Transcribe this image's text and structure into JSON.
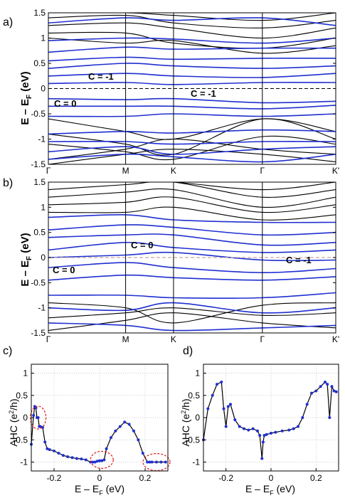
{
  "panels": {
    "a_label": "a)",
    "b_label": "b)",
    "c_label": "c)",
    "d_label": "d)"
  },
  "band_axis": {
    "ylabel_main": "E – E",
    "ylabel_sub": "F",
    "ylabel_unit": " (eV)",
    "yticks": [
      "-1.5",
      "-1",
      "-0.5",
      "0",
      "0.5",
      "1",
      "1.5"
    ],
    "kpoints": [
      "Γ",
      "M",
      "K",
      "Γ",
      "K'"
    ]
  },
  "annotations_a": [
    "C = -1",
    "C = -1",
    "C = 0"
  ],
  "annotations_b": [
    "C = 0",
    "C = 0",
    "C = -1"
  ],
  "ahc_axis": {
    "ylabel_main": "AHC (e",
    "ylabel_sup": "2",
    "ylabel_end": "/h)",
    "xlabel_main": "E – E",
    "xlabel_sub": "F",
    "xlabel_unit": " (eV)",
    "yticks": [
      "-1",
      "-0.5",
      "0",
      "0.5",
      "1"
    ],
    "xticks": [
      "-0.2",
      "0",
      "0.2"
    ]
  },
  "colors": {
    "band_blue": "#1f2fd0",
    "band_black": "#000000",
    "highlight": "#e01b1b"
  },
  "chart_data": [
    {
      "type": "line",
      "panel": "a",
      "title": "",
      "xlabel": "",
      "ylabel": "E – EF (eV)",
      "ylim": [
        -1.5,
        1.5
      ],
      "x_categories": [
        "Γ",
        "M",
        "K",
        "Γ",
        "K'"
      ],
      "kpoint_positions": [
        0,
        1.0,
        1.62,
        2.77,
        3.72
      ],
      "fermi_level": 0,
      "blue_bands": [
        {
          "x": [
            0,
            1.0,
            1.62,
            2.77,
            3.72
          ],
          "values": [
            -1.4,
            -1.3,
            -1.35,
            -1.45,
            -1.3
          ]
        },
        {
          "x": [
            0,
            1.0,
            1.62,
            2.77,
            3.72
          ],
          "values": [
            -1.25,
            -1.15,
            -1.3,
            -1.2,
            -1.15
          ]
        },
        {
          "x": [
            0,
            1.0,
            1.62,
            2.77,
            3.72
          ],
          "values": [
            -1.05,
            -1.05,
            -1.1,
            -1.05,
            -1.05
          ]
        },
        {
          "x": [
            0,
            1.0,
            1.62,
            2.77,
            3.72
          ],
          "values": [
            -0.9,
            -0.85,
            -0.88,
            -0.82,
            -0.85
          ]
        },
        {
          "x": [
            0,
            1.0,
            1.62,
            2.77,
            3.72
          ],
          "values": [
            -0.55,
            -0.55,
            -0.5,
            -0.55,
            -0.5
          ]
        },
        {
          "x": [
            0,
            1.0,
            1.62,
            2.77,
            3.72
          ],
          "values": [
            -0.35,
            -0.35,
            -0.35,
            -0.4,
            -0.33
          ]
        },
        {
          "x": [
            0,
            1.0,
            1.62,
            2.77,
            3.72
          ],
          "values": [
            -0.2,
            -0.22,
            -0.2,
            -0.28,
            -0.25
          ]
        },
        {
          "x": [
            0,
            1.0,
            1.62,
            2.77,
            3.72
          ],
          "values": [
            0.1,
            0.12,
            0.08,
            0.12,
            0.12
          ]
        },
        {
          "x": [
            0,
            1.0,
            1.62,
            2.77,
            3.72
          ],
          "values": [
            0.25,
            0.3,
            0.25,
            0.22,
            0.3
          ]
        },
        {
          "x": [
            0,
            1.0,
            1.62,
            2.77,
            3.72
          ],
          "values": [
            0.4,
            0.5,
            0.45,
            0.4,
            0.45
          ]
        },
        {
          "x": [
            0,
            1.0,
            1.62,
            2.77,
            3.72
          ],
          "values": [
            0.55,
            0.62,
            0.58,
            0.6,
            0.6
          ]
        },
        {
          "x": [
            0,
            1.0,
            1.62,
            2.77,
            3.72
          ],
          "values": [
            0.72,
            0.82,
            0.78,
            0.8,
            0.8
          ]
        },
        {
          "x": [
            0,
            1.0,
            1.62,
            2.77,
            3.72
          ],
          "values": [
            0.95,
            1.0,
            0.98,
            0.9,
            1.0
          ]
        },
        {
          "x": [
            0,
            1.0,
            1.62,
            2.77,
            3.72
          ],
          "values": [
            1.3,
            1.4,
            1.35,
            1.4,
            1.25
          ]
        }
      ],
      "black_bands": [
        {
          "x": [
            0,
            1.0,
            1.62,
            2.77,
            3.72
          ],
          "values": [
            -1.5,
            -1.3,
            -1.2,
            -1.3,
            -1.45
          ]
        },
        {
          "x": [
            0,
            1.0,
            1.62,
            2.77,
            3.72
          ],
          "values": [
            -1.4,
            -1.2,
            -1.0,
            -1.2,
            -1.3
          ]
        },
        {
          "x": [
            0,
            1.0,
            1.62,
            2.77,
            3.72
          ],
          "values": [
            -1.1,
            -1.25,
            -1.4,
            -0.95,
            -1.1
          ]
        },
        {
          "x": [
            0,
            1.0,
            1.62,
            2.77,
            3.72
          ],
          "values": [
            -0.9,
            -1.1,
            -1.3,
            -0.6,
            -1.0
          ]
        },
        {
          "x": [
            0,
            1.0,
            1.62,
            2.77,
            3.72
          ],
          "values": [
            -0.6,
            -0.85,
            -1.0,
            -0.6,
            -0.85
          ]
        },
        {
          "x": [
            0,
            1.0,
            1.62,
            2.77,
            3.72
          ],
          "values": [
            1.0,
            0.9,
            0.95,
            0.7,
            0.85
          ]
        },
        {
          "x": [
            0,
            1.0,
            1.62,
            2.77,
            3.72
          ],
          "values": [
            1.1,
            1.1,
            0.9,
            0.8,
            1.0
          ]
        },
        {
          "x": [
            0,
            1.0,
            1.62,
            2.77,
            3.72
          ],
          "values": [
            1.25,
            1.3,
            1.2,
            1.0,
            1.2
          ]
        },
        {
          "x": [
            0,
            1.0,
            1.62,
            2.77,
            3.72
          ],
          "values": [
            1.4,
            1.45,
            1.3,
            1.2,
            1.35
          ]
        },
        {
          "x": [
            0,
            1.0,
            1.62,
            2.77,
            3.72
          ],
          "values": [
            1.5,
            1.5,
            1.45,
            1.35,
            1.5
          ]
        }
      ]
    },
    {
      "type": "line",
      "panel": "b",
      "title": "",
      "xlabel": "",
      "ylabel": "E – EF (eV)",
      "ylim": [
        -1.5,
        1.5
      ],
      "x_categories": [
        "Γ",
        "M",
        "K",
        "Γ",
        "K'"
      ],
      "kpoint_positions": [
        0,
        1.0,
        1.62,
        2.77,
        3.72
      ],
      "fermi_level": 0,
      "blue_bands": [
        {
          "x": [
            0,
            1.0,
            1.62,
            2.77,
            3.72
          ],
          "values": [
            -1.3,
            -1.35,
            -1.45,
            -1.4,
            -1.35
          ]
        },
        {
          "x": [
            0,
            1.0,
            1.62,
            2.77,
            3.72
          ],
          "values": [
            -1.0,
            -1.05,
            -0.9,
            -1.1,
            -1.0
          ]
        },
        {
          "x": [
            0,
            1.0,
            1.62,
            2.77,
            3.72
          ],
          "values": [
            -0.75,
            -0.75,
            -0.8,
            -0.8,
            -0.7
          ]
        },
        {
          "x": [
            0,
            1.0,
            1.62,
            2.77,
            3.72
          ],
          "values": [
            -0.45,
            -0.35,
            -0.4,
            -0.45,
            -0.38
          ]
        },
        {
          "x": [
            0,
            1.0,
            1.62,
            2.77,
            3.72
          ],
          "values": [
            -0.2,
            -0.1,
            -0.2,
            -0.3,
            -0.22
          ]
        },
        {
          "x": [
            0,
            1.0,
            1.62,
            2.77,
            3.72
          ],
          "values": [
            0.0,
            0.05,
            0.1,
            -0.05,
            -0.05
          ]
        },
        {
          "x": [
            0,
            1.0,
            1.62,
            2.77,
            3.72
          ],
          "values": [
            0.15,
            0.3,
            0.2,
            0.1,
            0.15
          ]
        },
        {
          "x": [
            0,
            1.0,
            1.62,
            2.77,
            3.72
          ],
          "values": [
            0.4,
            0.45,
            0.45,
            0.25,
            0.3
          ]
        },
        {
          "x": [
            0,
            1.0,
            1.62,
            2.77,
            3.72
          ],
          "values": [
            0.55,
            0.65,
            0.6,
            0.45,
            0.5
          ]
        },
        {
          "x": [
            0,
            1.0,
            1.62,
            2.77,
            3.72
          ],
          "values": [
            0.8,
            0.85,
            0.75,
            0.7,
            0.7
          ]
        }
      ],
      "black_bands": [
        {
          "x": [
            0,
            1.0,
            1.62,
            2.77,
            3.72
          ],
          "values": [
            -1.45,
            -1.25,
            -1.1,
            -1.3,
            -1.4
          ]
        },
        {
          "x": [
            0,
            1.0,
            1.62,
            2.77,
            3.72
          ],
          "values": [
            -1.2,
            -1.1,
            -1.0,
            -1.15,
            -1.1
          ]
        },
        {
          "x": [
            0,
            1.0,
            1.62,
            2.77,
            3.72
          ],
          "values": [
            -0.9,
            -1.0,
            -1.3,
            -0.95,
            -0.9
          ]
        },
        {
          "x": [
            0,
            1.0,
            1.62,
            2.77,
            3.72
          ],
          "values": [
            0.9,
            0.9,
            1.0,
            0.75,
            0.85
          ]
        },
        {
          "x": [
            0,
            1.0,
            1.62,
            2.77,
            3.72
          ],
          "values": [
            1.05,
            1.1,
            1.2,
            0.9,
            1.05
          ]
        },
        {
          "x": [
            0,
            1.0,
            1.62,
            2.77,
            3.72
          ],
          "values": [
            1.2,
            1.3,
            1.35,
            1.0,
            1.2
          ]
        },
        {
          "x": [
            0,
            1.0,
            1.62,
            2.77,
            3.72
          ],
          "values": [
            1.35,
            1.45,
            1.5,
            1.2,
            1.35
          ]
        },
        {
          "x": [
            0,
            1.0,
            1.62,
            2.77,
            3.72
          ],
          "values": [
            1.5,
            1.5,
            1.5,
            1.35,
            1.5
          ]
        }
      ]
    },
    {
      "type": "line",
      "panel": "c",
      "title": "",
      "xlabel": "E – EF (eV)",
      "ylabel": "AHC (e2/h)",
      "xlim": [
        -0.3,
        0.3
      ],
      "ylim": [
        -1.2,
        1.2
      ],
      "grid": true,
      "x": [
        -0.3,
        -0.29,
        -0.285,
        -0.28,
        -0.275,
        -0.27,
        -0.265,
        -0.26,
        -0.25,
        -0.24,
        -0.23,
        -0.22,
        -0.2,
        -0.18,
        -0.16,
        -0.14,
        -0.12,
        -0.1,
        -0.08,
        -0.06,
        -0.04,
        -0.03,
        -0.02,
        -0.01,
        0.0,
        0.01,
        0.02,
        0.03,
        0.05,
        0.07,
        0.09,
        0.11,
        0.13,
        0.15,
        0.17,
        0.19,
        0.21,
        0.22,
        0.23,
        0.25,
        0.27,
        0.29
      ],
      "values": [
        -0.6,
        0.05,
        0.25,
        0.22,
        0.0,
        0.0,
        -0.2,
        -0.2,
        -0.22,
        -0.55,
        -0.7,
        -0.72,
        -0.75,
        -0.8,
        -0.85,
        -0.88,
        -0.9,
        -0.92,
        -0.93,
        -0.95,
        -1.0,
        -1.0,
        -1.0,
        -0.98,
        -0.97,
        -0.97,
        -0.95,
        -0.7,
        -0.45,
        -0.3,
        -0.2,
        -0.1,
        -0.15,
        -0.3,
        -0.5,
        -0.8,
        -1.0,
        -1.0,
        -1.0,
        -1.0,
        -1.0,
        -1.0
      ]
    },
    {
      "type": "line",
      "panel": "d",
      "title": "",
      "xlabel": "E – EF (eV)",
      "ylabel": "AHC (e2/h)",
      "xlim": [
        -0.3,
        0.3
      ],
      "ylim": [
        -1.2,
        1.2
      ],
      "grid": true,
      "x": [
        -0.3,
        -0.28,
        -0.26,
        -0.24,
        -0.22,
        -0.21,
        -0.2,
        -0.19,
        -0.18,
        -0.16,
        -0.14,
        -0.12,
        -0.1,
        -0.08,
        -0.06,
        -0.05,
        -0.04,
        -0.035,
        -0.03,
        -0.02,
        0.0,
        0.02,
        0.05,
        0.08,
        0.1,
        0.12,
        0.14,
        0.16,
        0.18,
        0.2,
        0.22,
        0.24,
        0.25,
        0.26,
        0.27,
        0.28,
        0.29
      ],
      "values": [
        -0.5,
        0.2,
        0.5,
        0.75,
        0.8,
        0.2,
        -0.2,
        0.25,
        0.3,
        -0.05,
        -0.2,
        -0.25,
        -0.28,
        -0.25,
        -0.3,
        -0.4,
        -0.92,
        -0.55,
        -0.4,
        -0.38,
        -0.35,
        -0.33,
        -0.3,
        -0.28,
        -0.25,
        -0.2,
        0.0,
        0.3,
        0.55,
        0.6,
        0.7,
        0.8,
        0.75,
        0.0,
        0.7,
        0.6,
        0.58
      ]
    }
  ]
}
